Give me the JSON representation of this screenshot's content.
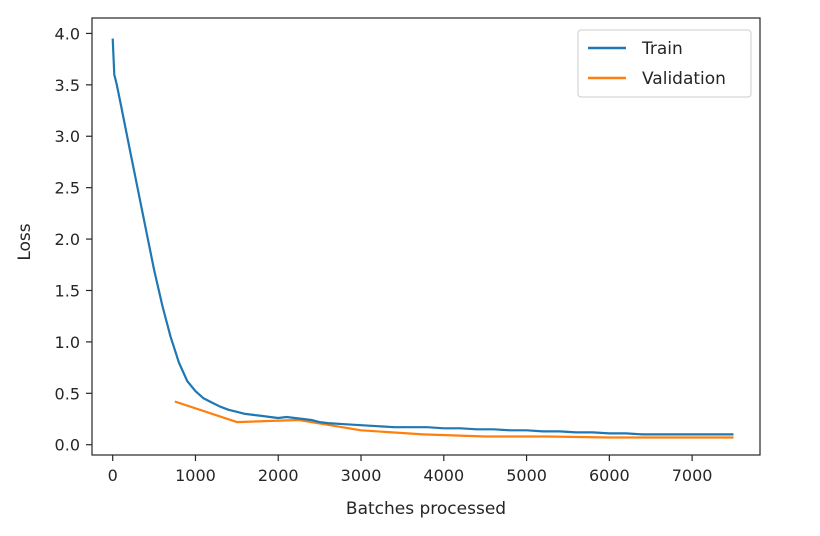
{
  "chart_data": {
    "type": "line",
    "xlabel": "Batches processed",
    "ylabel": "Loss",
    "xlim": [
      -250,
      7820
    ],
    "ylim": [
      -0.1,
      4.15
    ],
    "xticks": [
      0,
      1000,
      2000,
      3000,
      4000,
      5000,
      6000,
      7000
    ],
    "yticks": [
      0.0,
      0.5,
      1.0,
      1.5,
      2.0,
      2.5,
      3.0,
      3.5,
      4.0
    ],
    "xtick_labels": [
      "0",
      "1000",
      "2000",
      "3000",
      "4000",
      "5000",
      "6000",
      "7000"
    ],
    "ytick_labels": [
      "0.0",
      "0.5",
      "1.0",
      "1.5",
      "2.0",
      "2.5",
      "3.0",
      "3.5",
      "4.0"
    ],
    "grid": false,
    "legend_position": "top-right",
    "series": [
      {
        "name": "Train",
        "color": "#1f77b4",
        "x": [
          0,
          20,
          50,
          100,
          150,
          200,
          300,
          400,
          500,
          600,
          700,
          800,
          900,
          1000,
          1100,
          1200,
          1300,
          1400,
          1500,
          1600,
          1700,
          1800,
          1900,
          2000,
          2100,
          2200,
          2300,
          2400,
          2500,
          2600,
          2800,
          3000,
          3200,
          3400,
          3600,
          3800,
          4000,
          4200,
          4400,
          4600,
          4800,
          5000,
          5200,
          5400,
          5600,
          5800,
          6000,
          6200,
          6400,
          6600,
          6800,
          7000,
          7200,
          7400,
          7500
        ],
        "y": [
          3.95,
          3.6,
          3.5,
          3.3,
          3.1,
          2.9,
          2.5,
          2.1,
          1.7,
          1.35,
          1.05,
          0.8,
          0.62,
          0.52,
          0.45,
          0.41,
          0.37,
          0.34,
          0.32,
          0.3,
          0.29,
          0.28,
          0.27,
          0.26,
          0.27,
          0.26,
          0.25,
          0.24,
          0.22,
          0.21,
          0.2,
          0.19,
          0.18,
          0.17,
          0.17,
          0.17,
          0.16,
          0.16,
          0.15,
          0.15,
          0.14,
          0.14,
          0.13,
          0.13,
          0.12,
          0.12,
          0.11,
          0.11,
          0.1,
          0.1,
          0.1,
          0.1,
          0.1,
          0.1,
          0.1
        ]
      },
      {
        "name": "Validation",
        "color": "#ff7f0e",
        "x": [
          750,
          1500,
          2250,
          3000,
          3750,
          4500,
          5250,
          6000,
          6750,
          7500
        ],
        "y": [
          0.42,
          0.22,
          0.24,
          0.14,
          0.1,
          0.08,
          0.08,
          0.07,
          0.07,
          0.07
        ]
      }
    ]
  }
}
